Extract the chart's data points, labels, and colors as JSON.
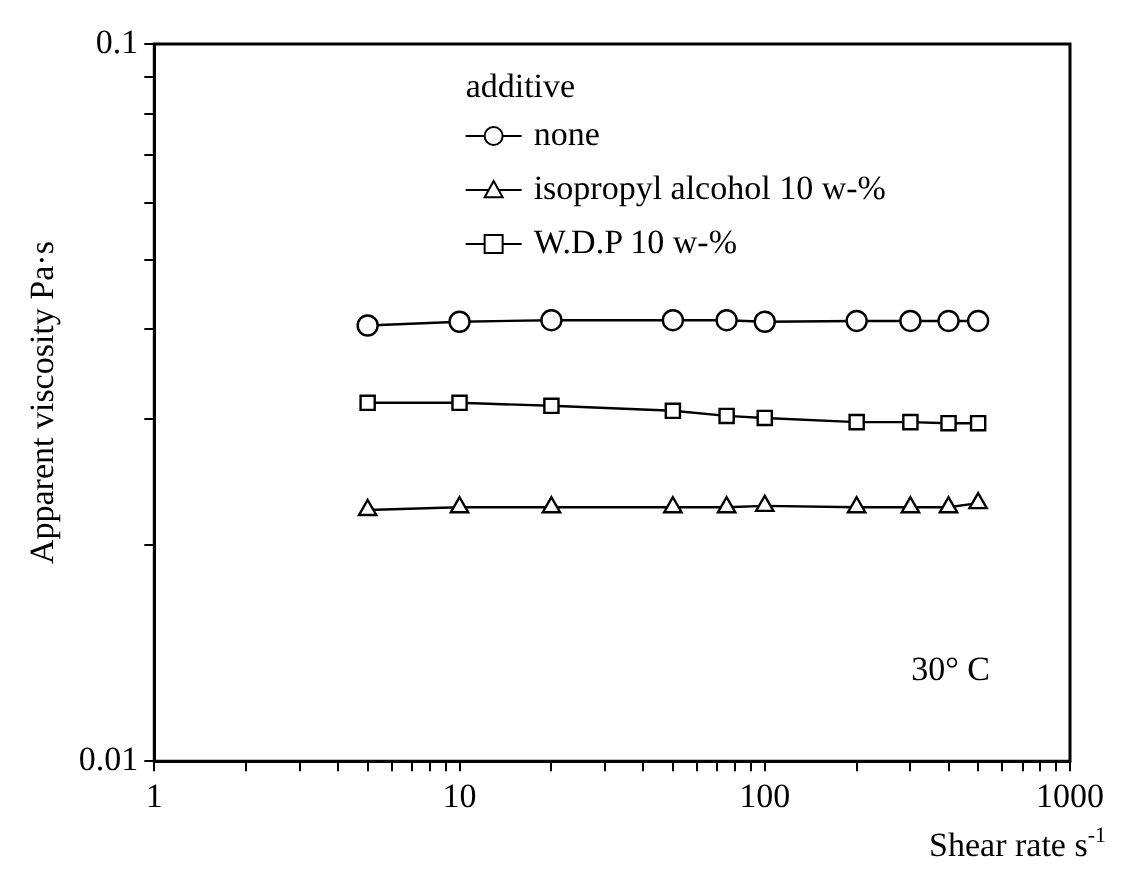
{
  "chart_data": {
    "type": "line",
    "xlabel": "Shear rate s$^{-1}$",
    "ylabel": "Apparent viscosity Pa·s",
    "legend_title": "additive",
    "legend": "top",
    "log": "xy",
    "grid": false,
    "x": [
      5,
      10,
      20,
      50,
      75,
      100,
      200,
      300,
      400,
      500
    ],
    "xlim": [
      1,
      1000
    ],
    "xticks": [
      1,
      {
        "value": 2,
        "label": null
      },
      {
        "value": 3,
        "label": null
      },
      {
        "value": 4,
        "label": null
      },
      {
        "value": 5,
        "label": null
      },
      {
        "value": 6,
        "label": null
      },
      {
        "value": 7,
        "label": null
      },
      {
        "value": 8,
        "label": null
      },
      {
        "value": 9,
        "label": null
      },
      10,
      {
        "value": 20,
        "label": null
      },
      {
        "value": 30,
        "label": null
      },
      {
        "value": 40,
        "label": null
      },
      {
        "value": 50,
        "label": null
      },
      {
        "value": 60,
        "label": null
      },
      {
        "value": 70,
        "label": null
      },
      {
        "value": 80,
        "label": null
      },
      {
        "value": 90,
        "label": null
      },
      100,
      {
        "value": 200,
        "label": null
      },
      {
        "value": 300,
        "label": null
      },
      {
        "value": 400,
        "label": null
      },
      {
        "value": 500,
        "label": null
      },
      {
        "value": 600,
        "label": null
      },
      {
        "value": 700,
        "label": null
      },
      {
        "value": 800,
        "label": null
      },
      {
        "value": 900,
        "label": null
      },
      1000
    ],
    "ylim": [
      0.01,
      0.1
    ],
    "yticks": [
      0.01,
      {
        "value": 0.02,
        "label": null
      },
      {
        "value": 0.03,
        "label": null
      },
      {
        "value": 0.04,
        "label": null
      },
      {
        "value": 0.05,
        "label": null
      },
      {
        "value": 0.06,
        "label": null
      },
      {
        "value": 0.07,
        "label": null
      },
      {
        "value": 0.08,
        "label": null
      },
      {
        "value": 0.09,
        "label": null
      },
      0.1
    ],
    "series": [
      {
        "name": "none",
        "color": "#000000",
        "marker": "circle",
        "values": [
          0.0405,
          0.041,
          0.0412,
          0.0412,
          0.0412,
          0.041,
          0.0411,
          0.0411,
          0.0411,
          0.0411
        ]
      },
      {
        "name": "isopropyl alcohol 10 w-%",
        "color": "#000000",
        "marker": "triangle",
        "values": [
          0.0224,
          0.0226,
          0.0226,
          0.0226,
          0.0226,
          0.0227,
          0.0226,
          0.0226,
          0.0226,
          0.0229
        ]
      },
      {
        "name": "W.D.P 10 w-%",
        "color": "#000000",
        "marker": "square",
        "values": [
          0.0316,
          0.0316,
          0.0313,
          0.0308,
          0.0303,
          0.0301,
          0.0297,
          0.0297,
          0.0296,
          0.0296
        ]
      }
    ],
    "annotations": [
      "30° C"
    ]
  }
}
